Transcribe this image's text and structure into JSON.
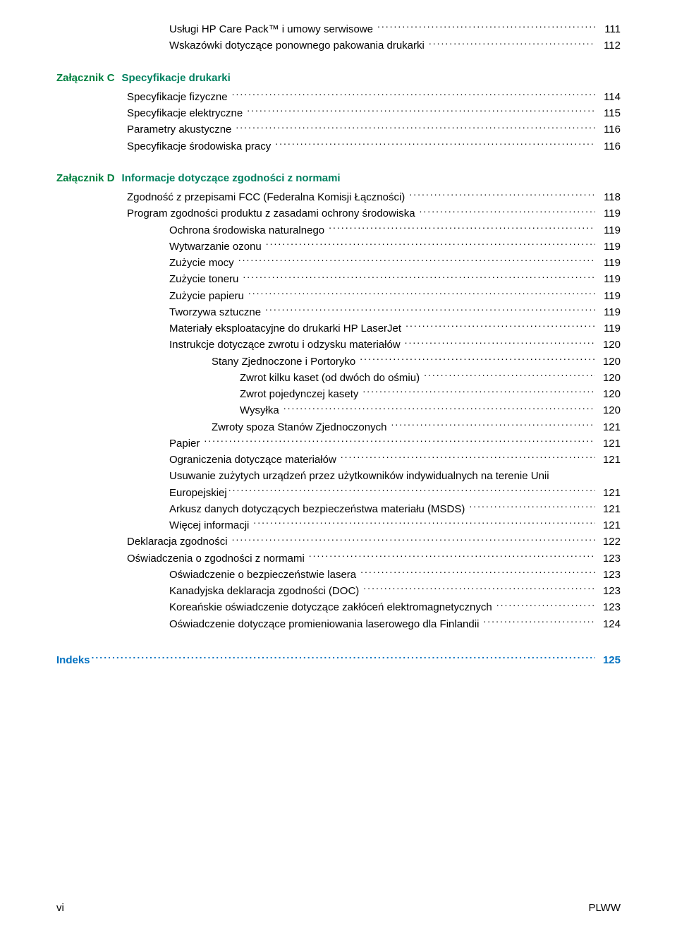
{
  "colors": {
    "text": "#000000",
    "link_blue": "#0070c0",
    "heading_green": "#008060",
    "background": "#ffffff"
  },
  "typography": {
    "font_family": "Arial",
    "body_size_pt": 11,
    "line_height": 1.55
  },
  "pre_section_entries": [
    {
      "level": 3,
      "label": "Usługi HP Care Pack™ i umowy serwisowe",
      "page": "111"
    },
    {
      "level": 3,
      "label": "Wskazówki dotyczące ponownego pakowania drukarki",
      "page": "112"
    }
  ],
  "appendix_c": {
    "prefix": "Załącznik C",
    "title": "Specyfikacje drukarki",
    "entries": [
      {
        "level": 2,
        "label": "Specyfikacje fizyczne",
        "page": "114"
      },
      {
        "level": 2,
        "label": "Specyfikacje elektryczne",
        "page": "115"
      },
      {
        "level": 2,
        "label": "Parametry akustyczne",
        "page": "116"
      },
      {
        "level": 2,
        "label": "Specyfikacje środowiska pracy",
        "page": "116"
      }
    ]
  },
  "appendix_d": {
    "prefix": "Załącznik D",
    "title": "Informacje dotyczące zgodności z normami",
    "entries": [
      {
        "level": 2,
        "label": "Zgodność z przepisami FCC (Federalna Komisji Łączności)",
        "page": "118"
      },
      {
        "level": 2,
        "label": "Program zgodności produktu z zasadami ochrony środowiska",
        "page": "119"
      },
      {
        "level": 3,
        "label": "Ochrona środowiska naturalnego",
        "page": "119"
      },
      {
        "level": 3,
        "label": "Wytwarzanie ozonu",
        "page": "119"
      },
      {
        "level": 3,
        "label": "Zużycie mocy",
        "page": "119"
      },
      {
        "level": 3,
        "label": "Zużycie toneru",
        "page": "119"
      },
      {
        "level": 3,
        "label": "Zużycie papieru",
        "page": "119"
      },
      {
        "level": 3,
        "label": "Tworzywa sztuczne",
        "page": "119"
      },
      {
        "level": 3,
        "label": "Materiały eksploatacyjne do drukarki HP LaserJet",
        "page": "119"
      },
      {
        "level": 3,
        "label": "Instrukcje dotyczące zwrotu i odzysku materiałów",
        "page": "120"
      },
      {
        "level": 4,
        "label": "Stany Zjednoczone i Portoryko",
        "page": "120"
      },
      {
        "level": 5,
        "label": "Zwrot kilku kaset (od dwóch do ośmiu)",
        "page": "120"
      },
      {
        "level": 5,
        "label": "Zwrot pojedynczej kasety",
        "page": "120"
      },
      {
        "level": 5,
        "label": "Wysyłka",
        "page": "120"
      },
      {
        "level": 4,
        "label": "Zwroty spoza Stanów Zjednoczonych",
        "page": "121"
      },
      {
        "level": 3,
        "label": "Papier",
        "page": "121"
      },
      {
        "level": 3,
        "label": "Ograniczenia dotyczące materiałów",
        "page": "121"
      },
      {
        "level": 3,
        "label": "Usuwanie zużytych urządzeń przez użytkowników indywidualnych na terenie Unii Europejskiej",
        "page": "121",
        "wrap": true
      },
      {
        "level": 3,
        "label": "Arkusz danych dotyczących bezpieczeństwa materiału (MSDS)",
        "page": "121"
      },
      {
        "level": 3,
        "label": "Więcej informacji",
        "page": "121"
      },
      {
        "level": 2,
        "label": "Deklaracja zgodności",
        "page": "122"
      },
      {
        "level": 2,
        "label": "Oświadczenia o zgodności z normami",
        "page": "123"
      },
      {
        "level": 3,
        "label": "Oświadczenie o bezpieczeństwie lasera",
        "page": "123"
      },
      {
        "level": 3,
        "label": "Kanadyjska deklaracja zgodności (DOC)",
        "page": "123"
      },
      {
        "level": 3,
        "label": "Koreańskie oświadczenie dotyczące zakłóceń elektromagnetycznych",
        "page": "123"
      },
      {
        "level": 3,
        "label": "Oświadczenie dotyczące promieniowania laserowego dla Finlandii",
        "page": "124"
      }
    ]
  },
  "index": {
    "label": "Indeks",
    "page": "125"
  },
  "footer": {
    "left": "vi",
    "right": "PLWW"
  }
}
